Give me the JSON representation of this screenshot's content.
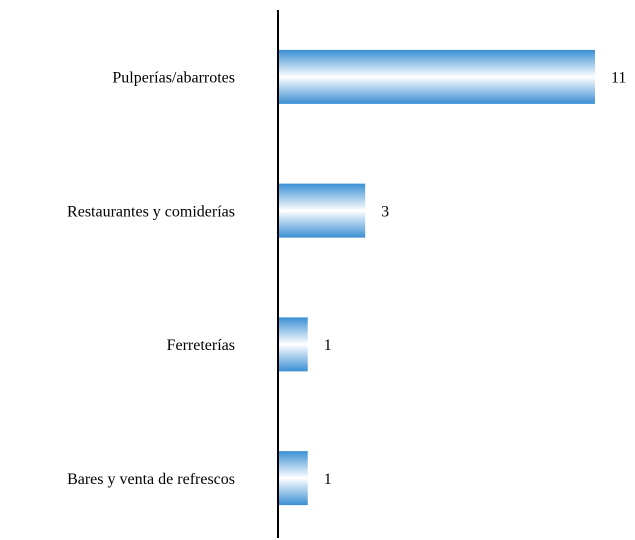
{
  "chart_data": {
    "type": "hbar",
    "categories": [
      "Pulperías/abarrotes",
      "Restaurantes y comiderías",
      "Ferreterías",
      "Bares y venta de refrescos"
    ],
    "values": [
      11,
      3,
      1,
      1
    ],
    "color": "#3a8fd4"
  }
}
